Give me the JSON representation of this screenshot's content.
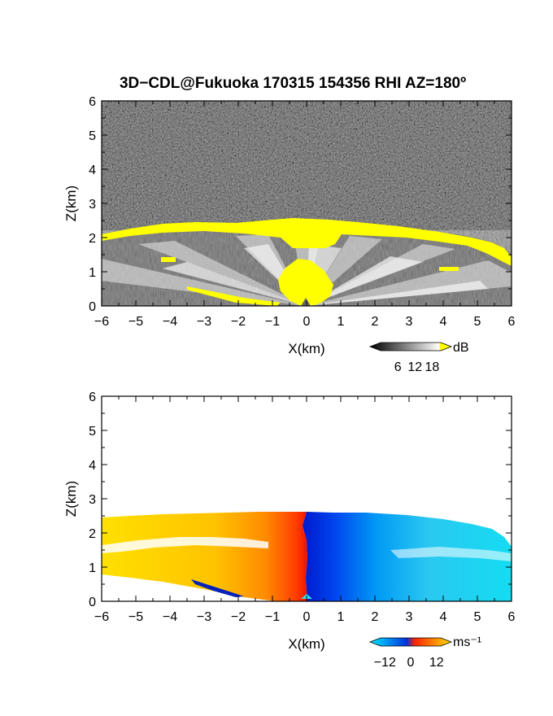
{
  "figure": {
    "title": "3D−CDL@Fukuoka 170315 154356 RHI AZ=180º"
  },
  "chart_data": [
    {
      "type": "heatmap",
      "panel": "top",
      "quantity": "signal intensity",
      "xlabel": "X(km)",
      "ylabel": "Z(km)",
      "xlim": [
        -6,
        6
      ],
      "ylim": [
        0,
        6
      ],
      "x_ticks": [
        "−6",
        "−5",
        "−4",
        "−3",
        "−2",
        "−1",
        "0",
        "1",
        "2",
        "3",
        "4",
        "5",
        "6"
      ],
      "y_ticks": [
        "0",
        "1",
        "2",
        "3",
        "4",
        "5",
        "6"
      ],
      "colorbar": {
        "unit": "dB",
        "ticks": [
          "6",
          "12",
          "18"
        ],
        "range": [
          0,
          21
        ],
        "colors": [
          "#000000",
          "#ffffff",
          "#ffff00"
        ]
      },
      "features": {
        "background": "black noise above ~2.3 km",
        "cloud_base_km": 2.1,
        "high_intensity_color": "#ffff00"
      }
    },
    {
      "type": "heatmap",
      "panel": "bottom",
      "quantity": "radial velocity",
      "xlabel": "X(km)",
      "ylabel": "Z(km)",
      "xlim": [
        -6,
        6
      ],
      "ylim": [
        0,
        6
      ],
      "x_ticks": [
        "−6",
        "−5",
        "−4",
        "−3",
        "−2",
        "−1",
        "0",
        "1",
        "2",
        "3",
        "4",
        "5",
        "6"
      ],
      "y_ticks": [
        "0",
        "1",
        "2",
        "3",
        "4",
        "5",
        "6"
      ],
      "colorbar": {
        "unit": "ms⁻¹",
        "ticks": [
          "−12",
          "0",
          "12"
        ],
        "range": [
          -14,
          14
        ],
        "colors": [
          "#00eaff",
          "#0033dd",
          "#ff2200",
          "#ffd200"
        ]
      },
      "features": {
        "top_of_data_km": 2.55,
        "left_side_sign": "positive",
        "right_side_sign": "negative"
      }
    }
  ]
}
